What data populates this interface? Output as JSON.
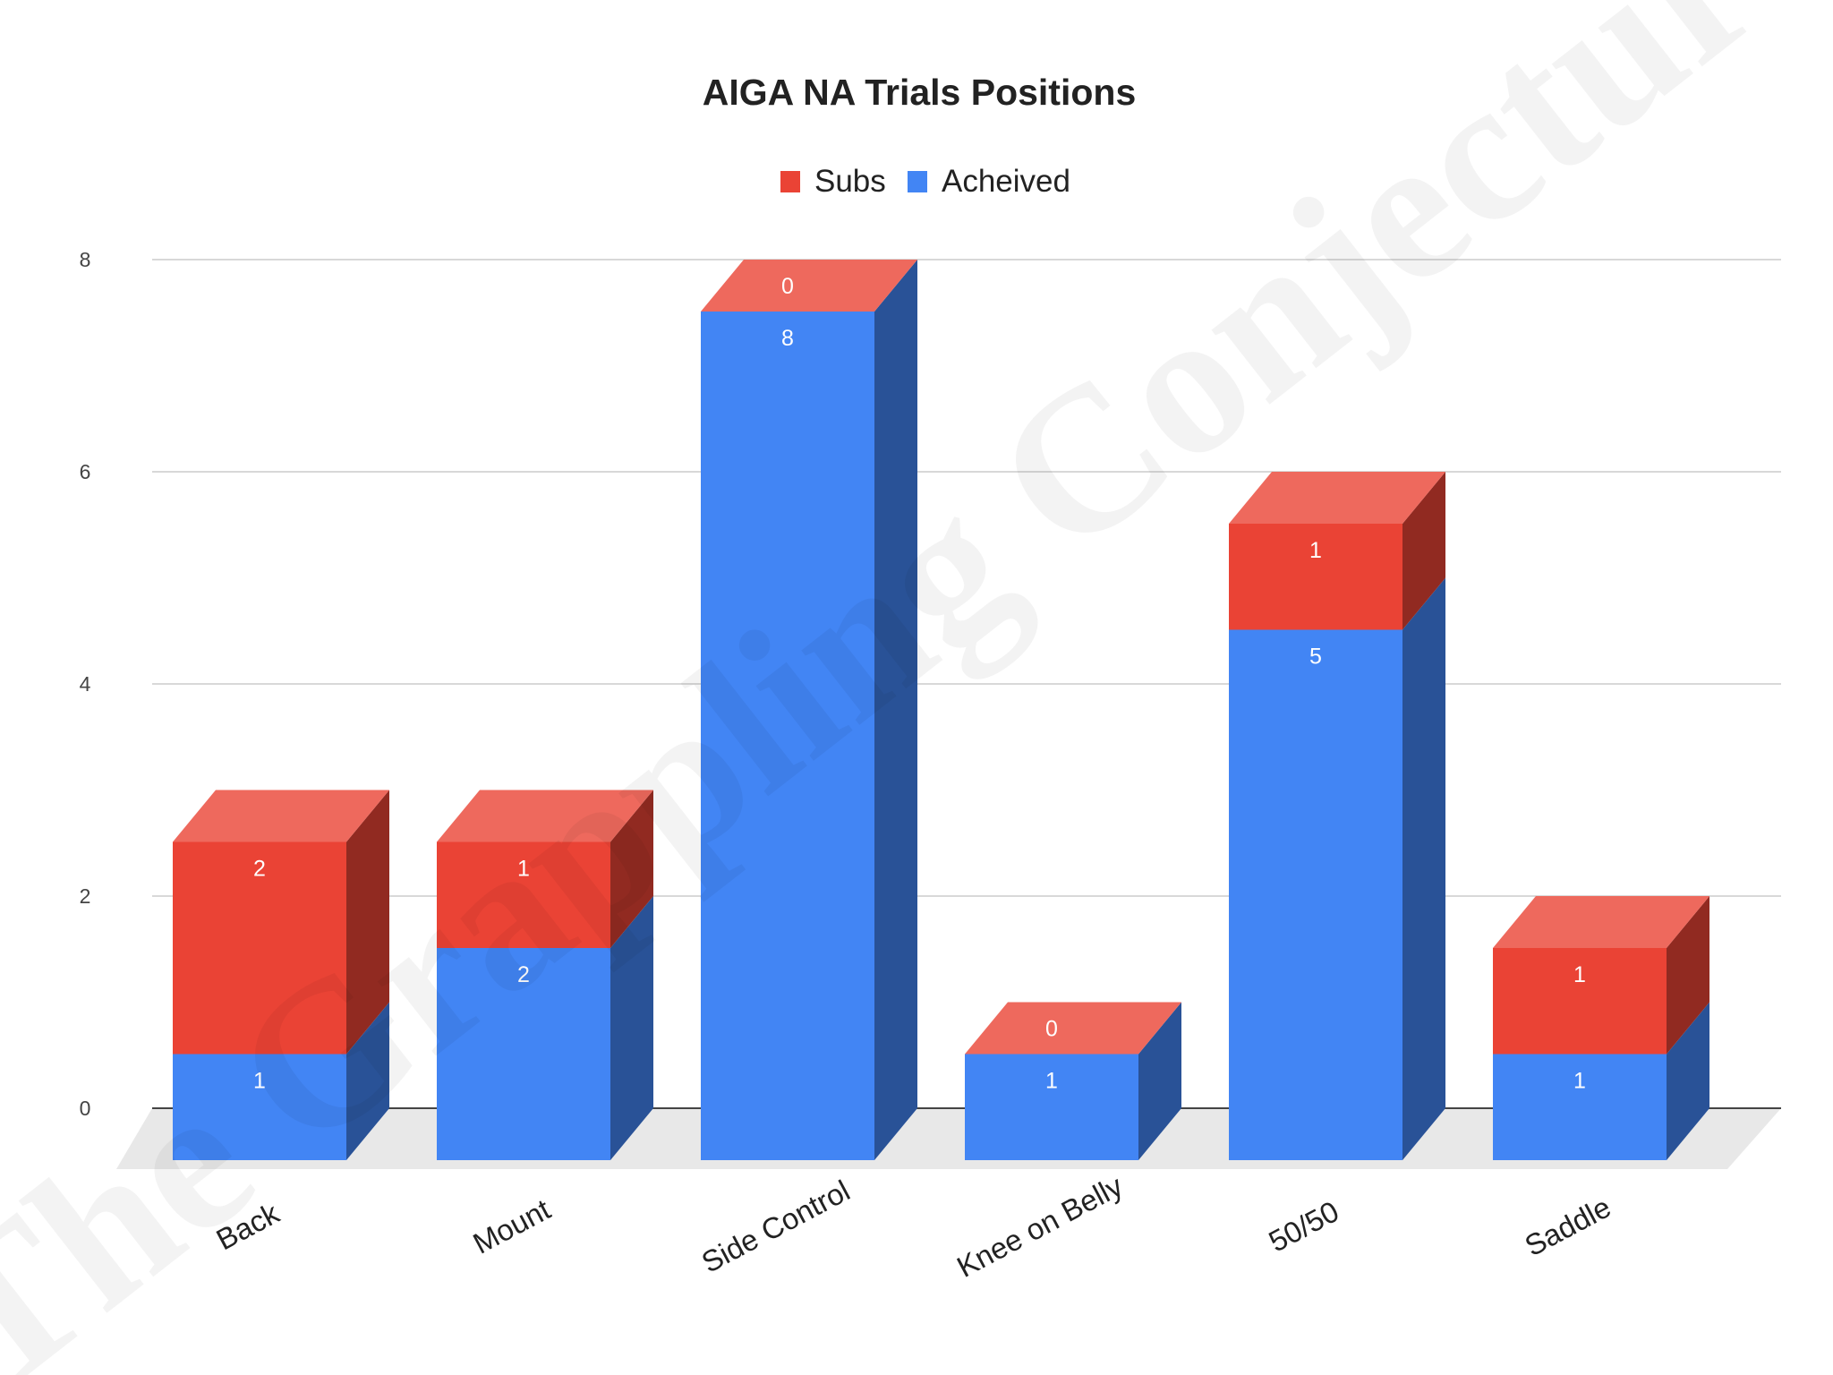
{
  "chart_data": {
    "type": "bar",
    "stacked": true,
    "style_3d": true,
    "title": "AIGA NA Trials Positions",
    "categories": [
      "Back",
      "Mount",
      "Side Control",
      "Knee on Belly",
      "50/50",
      "Saddle"
    ],
    "series": [
      {
        "name": "Acheived",
        "color": "#4285F4",
        "values": [
          1,
          2,
          8,
          1,
          5,
          1
        ]
      },
      {
        "name": "Subs",
        "color": "#EA4335",
        "values": [
          2,
          1,
          0,
          0,
          1,
          1
        ]
      }
    ],
    "legend_order": [
      "Subs",
      "Acheived"
    ],
    "legend_position": "top",
    "ylim": [
      0,
      8
    ],
    "yticks": [
      "0",
      "2",
      "4",
      "6",
      "8"
    ],
    "grid": true,
    "watermark": "The Grappling Conjecture"
  }
}
